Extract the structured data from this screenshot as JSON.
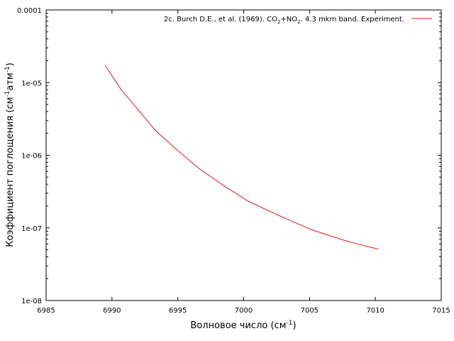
{
  "chart_data": {
    "type": "line",
    "xlabel": "Волновое число (см",
    "xlabel_sup": "-1",
    "xlabel_tail": ")",
    "ylabel": "Коэффициент поглощения (см",
    "ylabel_sup1": "-1",
    "ylabel_mid": "атм",
    "ylabel_sup2": "-1",
    "ylabel_tail": ")",
    "xlim": [
      6985,
      7015
    ],
    "ylim": [
      1e-08,
      0.0001
    ],
    "yscale": "log",
    "grid": false,
    "legend_position": "top-right",
    "xticks": [
      "6985",
      "6990",
      "6995",
      "7000",
      "7005",
      "7010",
      "7015"
    ],
    "yticks": [
      "1e-08",
      "1e-07",
      "1e-06",
      "1e-05",
      "0.0001"
    ],
    "line_color": "#e41a1c",
    "series": [
      {
        "name": "2c. Burch D.E., et al. (1969). CO2+NO2. 4.3 mkm band. Experiment.",
        "x": [
          6989.5,
          6990.7,
          6992.0,
          6993.3,
          6994.9,
          6996.6,
          6998.5,
          7000.4,
          7002.6,
          7005.1,
          7007.9,
          7010.2
        ],
        "y": [
          1.7e-05,
          8e-06,
          4.2e-06,
          2.2e-06,
          1.2e-06,
          6.6e-07,
          3.8e-07,
          2.3e-07,
          1.5e-07,
          9.5e-08,
          6.5e-08,
          5.1e-08
        ]
      }
    ]
  },
  "legend": {
    "prefix": "2c. Burch D.E., et al. (1969). CO",
    "sub1": "2",
    "mid": "+NO",
    "sub2": "2",
    "suffix": ". 4.3 mkm band. Experiment."
  }
}
